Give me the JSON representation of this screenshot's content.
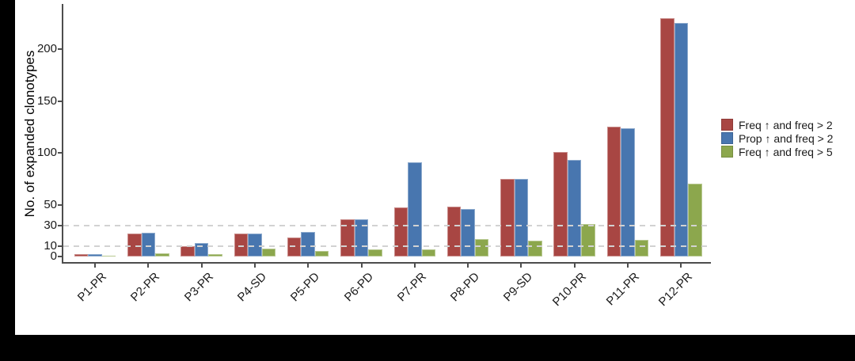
{
  "chart_data": {
    "type": "bar",
    "title": "",
    "ylabel": "No. of expanded clonotypes",
    "xlabel": "",
    "categories": [
      "P1-PR",
      "P2-PR",
      "P3-PR",
      "P4-SD",
      "P5-PD",
      "P6-PD",
      "P7-PR",
      "P8-PD",
      "P9-SD",
      "P10-PR",
      "P11-PR",
      "P12-PR"
    ],
    "series": [
      {
        "name": "Freq ↑ and freq > 2",
        "color": "#A84643",
        "values": [
          2,
          22,
          10,
          22,
          18,
          36,
          47,
          48,
          75,
          101,
          125,
          230
        ]
      },
      {
        "name": "Prop ↑ and freq > 2",
        "color": "#4876AF",
        "values": [
          2,
          23,
          13,
          22,
          24,
          36,
          91,
          46,
          75,
          93,
          124,
          225
        ]
      },
      {
        "name": "Freq ↑ and freq > 5",
        "color": "#8CA74D",
        "values": [
          1,
          3,
          2,
          8,
          5,
          7,
          7,
          17,
          15,
          31,
          16,
          70
        ]
      }
    ],
    "yticks": [
      0,
      10,
      30,
      50,
      100,
      150,
      200
    ],
    "dashed_gridlines_at": [
      10,
      30
    ],
    "ylim": [
      0,
      243
    ],
    "grid": "horizontal dashed lines at y=10 and y=30 only, drawn over bars",
    "legend_position": "right"
  },
  "colors": {
    "figure_background": "#000000",
    "plot_background": "#ffffff",
    "axis": "#4d4d4d",
    "gridline": "#d2d2d2",
    "text": "#1a1a1a"
  }
}
